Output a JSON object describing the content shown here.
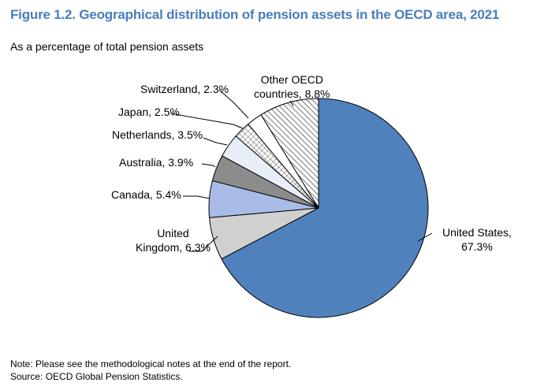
{
  "figure": {
    "title": "Figure 1.2. Geographical distribution of pension assets in the OECD area, 2021",
    "subtitle": "As a percentage of total pension assets"
  },
  "notes": {
    "note": "Note: Please see the methodological notes at the end of the report.",
    "source": "Source: OECD Global Pension Statistics."
  },
  "chart_data": {
    "type": "pie",
    "start_angle": "12 o'clock",
    "direction": "clockwise",
    "slices": [
      {
        "label": "United States",
        "value": 67.3,
        "label_lines": [
          "United States,",
          "67.3%"
        ],
        "fill": "#4f81bd",
        "pattern": "solid"
      },
      {
        "label": "United Kingdom",
        "value": 6.3,
        "label_lines": [
          "United",
          "Kingdom, 6.3%"
        ],
        "fill": "#d0d0d0",
        "pattern": "solid"
      },
      {
        "label": "Canada",
        "value": 5.4,
        "label_lines": [
          "Canada, 5.4%"
        ],
        "fill": "#a9bce8",
        "pattern": "solid"
      },
      {
        "label": "Australia",
        "value": 3.9,
        "label_lines": [
          "Australia, 3.9%"
        ],
        "fill": "#8c8c8c",
        "pattern": "solid"
      },
      {
        "label": "Netherlands",
        "value": 3.5,
        "label_lines": [
          "Netherlands, 3.5%"
        ],
        "fill": "#e8eef8",
        "pattern": "solid"
      },
      {
        "label": "Japan",
        "value": 2.5,
        "label_lines": [
          "Japan, 2.5%"
        ],
        "fill": "#ffffff",
        "pattern": "crosshatch"
      },
      {
        "label": "Switzerland",
        "value": 2.3,
        "label_lines": [
          "Switzerland, 2.3%"
        ],
        "fill": "#ffffff",
        "pattern": "solid"
      },
      {
        "label": "Other OECD countries",
        "value": 8.8,
        "label_lines": [
          "Other OECD",
          "countries, 8.8%"
        ],
        "fill": "#ffffff",
        "pattern": "diagonal"
      }
    ]
  }
}
